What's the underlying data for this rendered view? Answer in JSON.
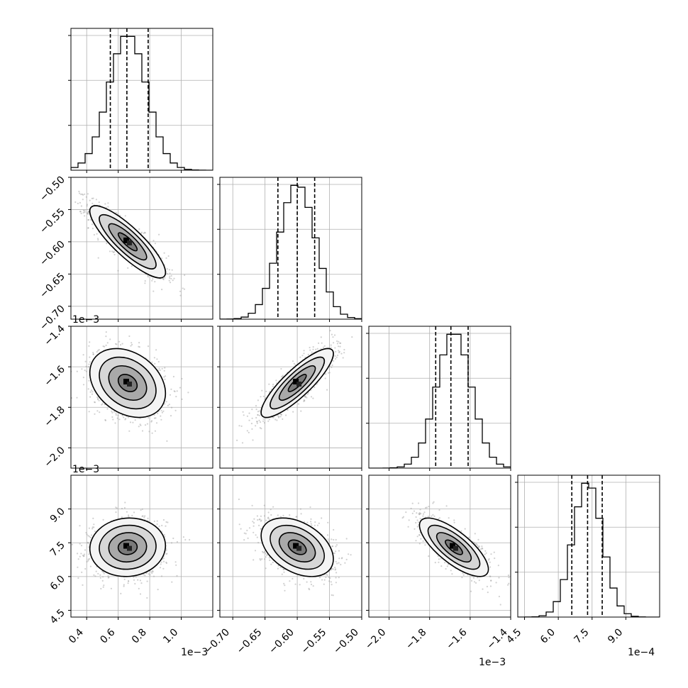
{
  "chart_data": {
    "type": "corner",
    "grid": true,
    "colors": {
      "line": "#000000",
      "grid": "#b0b0b0",
      "scatter": "#9a9a9a"
    },
    "parameters": [
      {
        "range": [
          0.0003,
          0.0012
        ],
        "ticks": [
          0.0004,
          0.0006,
          0.0008,
          0.001
        ],
        "tick_labels": [
          "0.4",
          "0.6",
          "0.8",
          "1.0"
        ],
        "offset": "1e−3",
        "mean": 0.00066,
        "sd": 0.00012,
        "quantiles": [
          0.00055,
          0.000655,
          0.00079
        ]
      },
      {
        "range": [
          -0.00072,
          -0.0005
        ],
        "ticks": [
          -0.0007,
          -0.00065,
          -0.0006,
          -0.00055,
          -0.0005
        ],
        "tick_labels": [
          "−0.70",
          "−0.65",
          "−0.60",
          "−0.55",
          "−0.50"
        ],
        "offset": "1e−3",
        "mean": -0.0006,
        "sd": 2.8e-05,
        "quantiles": [
          -0.00063,
          -0.0006,
          -0.000573
        ]
      },
      {
        "range": [
          -0.0021,
          -0.0014
        ],
        "ticks": [
          -0.002,
          -0.0018,
          -0.0016,
          -0.0014
        ],
        "tick_labels": [
          "−2.0",
          "−1.8",
          "−1.6",
          "−1.4"
        ],
        "offset": "1e−3",
        "mean": -0.00168,
        "sd": 8.5e-05,
        "quantiles": [
          -0.00177,
          -0.001695,
          -0.00161
        ]
      },
      {
        "range": [
          0.00042,
          0.00105
        ],
        "ticks": [
          0.00045,
          0.0006,
          0.00075,
          0.0009
        ],
        "tick_labels": [
          "4.5",
          "6.0",
          "7.5",
          "9.0"
        ],
        "offset": "1e−4",
        "mean": 0.00073,
        "sd": 6.5e-05,
        "quantiles": [
          0.00066,
          0.00073,
          0.000795
        ]
      }
    ],
    "correlations": [
      {
        "pair": [
          0,
          1
        ],
        "rho": -0.85
      },
      {
        "pair": [
          0,
          2
        ],
        "rho": -0.3
      },
      {
        "pair": [
          1,
          2
        ],
        "rho": 0.85
      },
      {
        "pair": [
          0,
          3
        ],
        "rho": 0.05
      },
      {
        "pair": [
          1,
          3
        ],
        "rho": -0.4
      },
      {
        "pair": [
          2,
          3
        ],
        "rho": -0.75
      }
    ],
    "histogram_bins": 20,
    "contour_levels_sigma": [
      0.5,
      1.0,
      1.5,
      2.0
    ]
  }
}
